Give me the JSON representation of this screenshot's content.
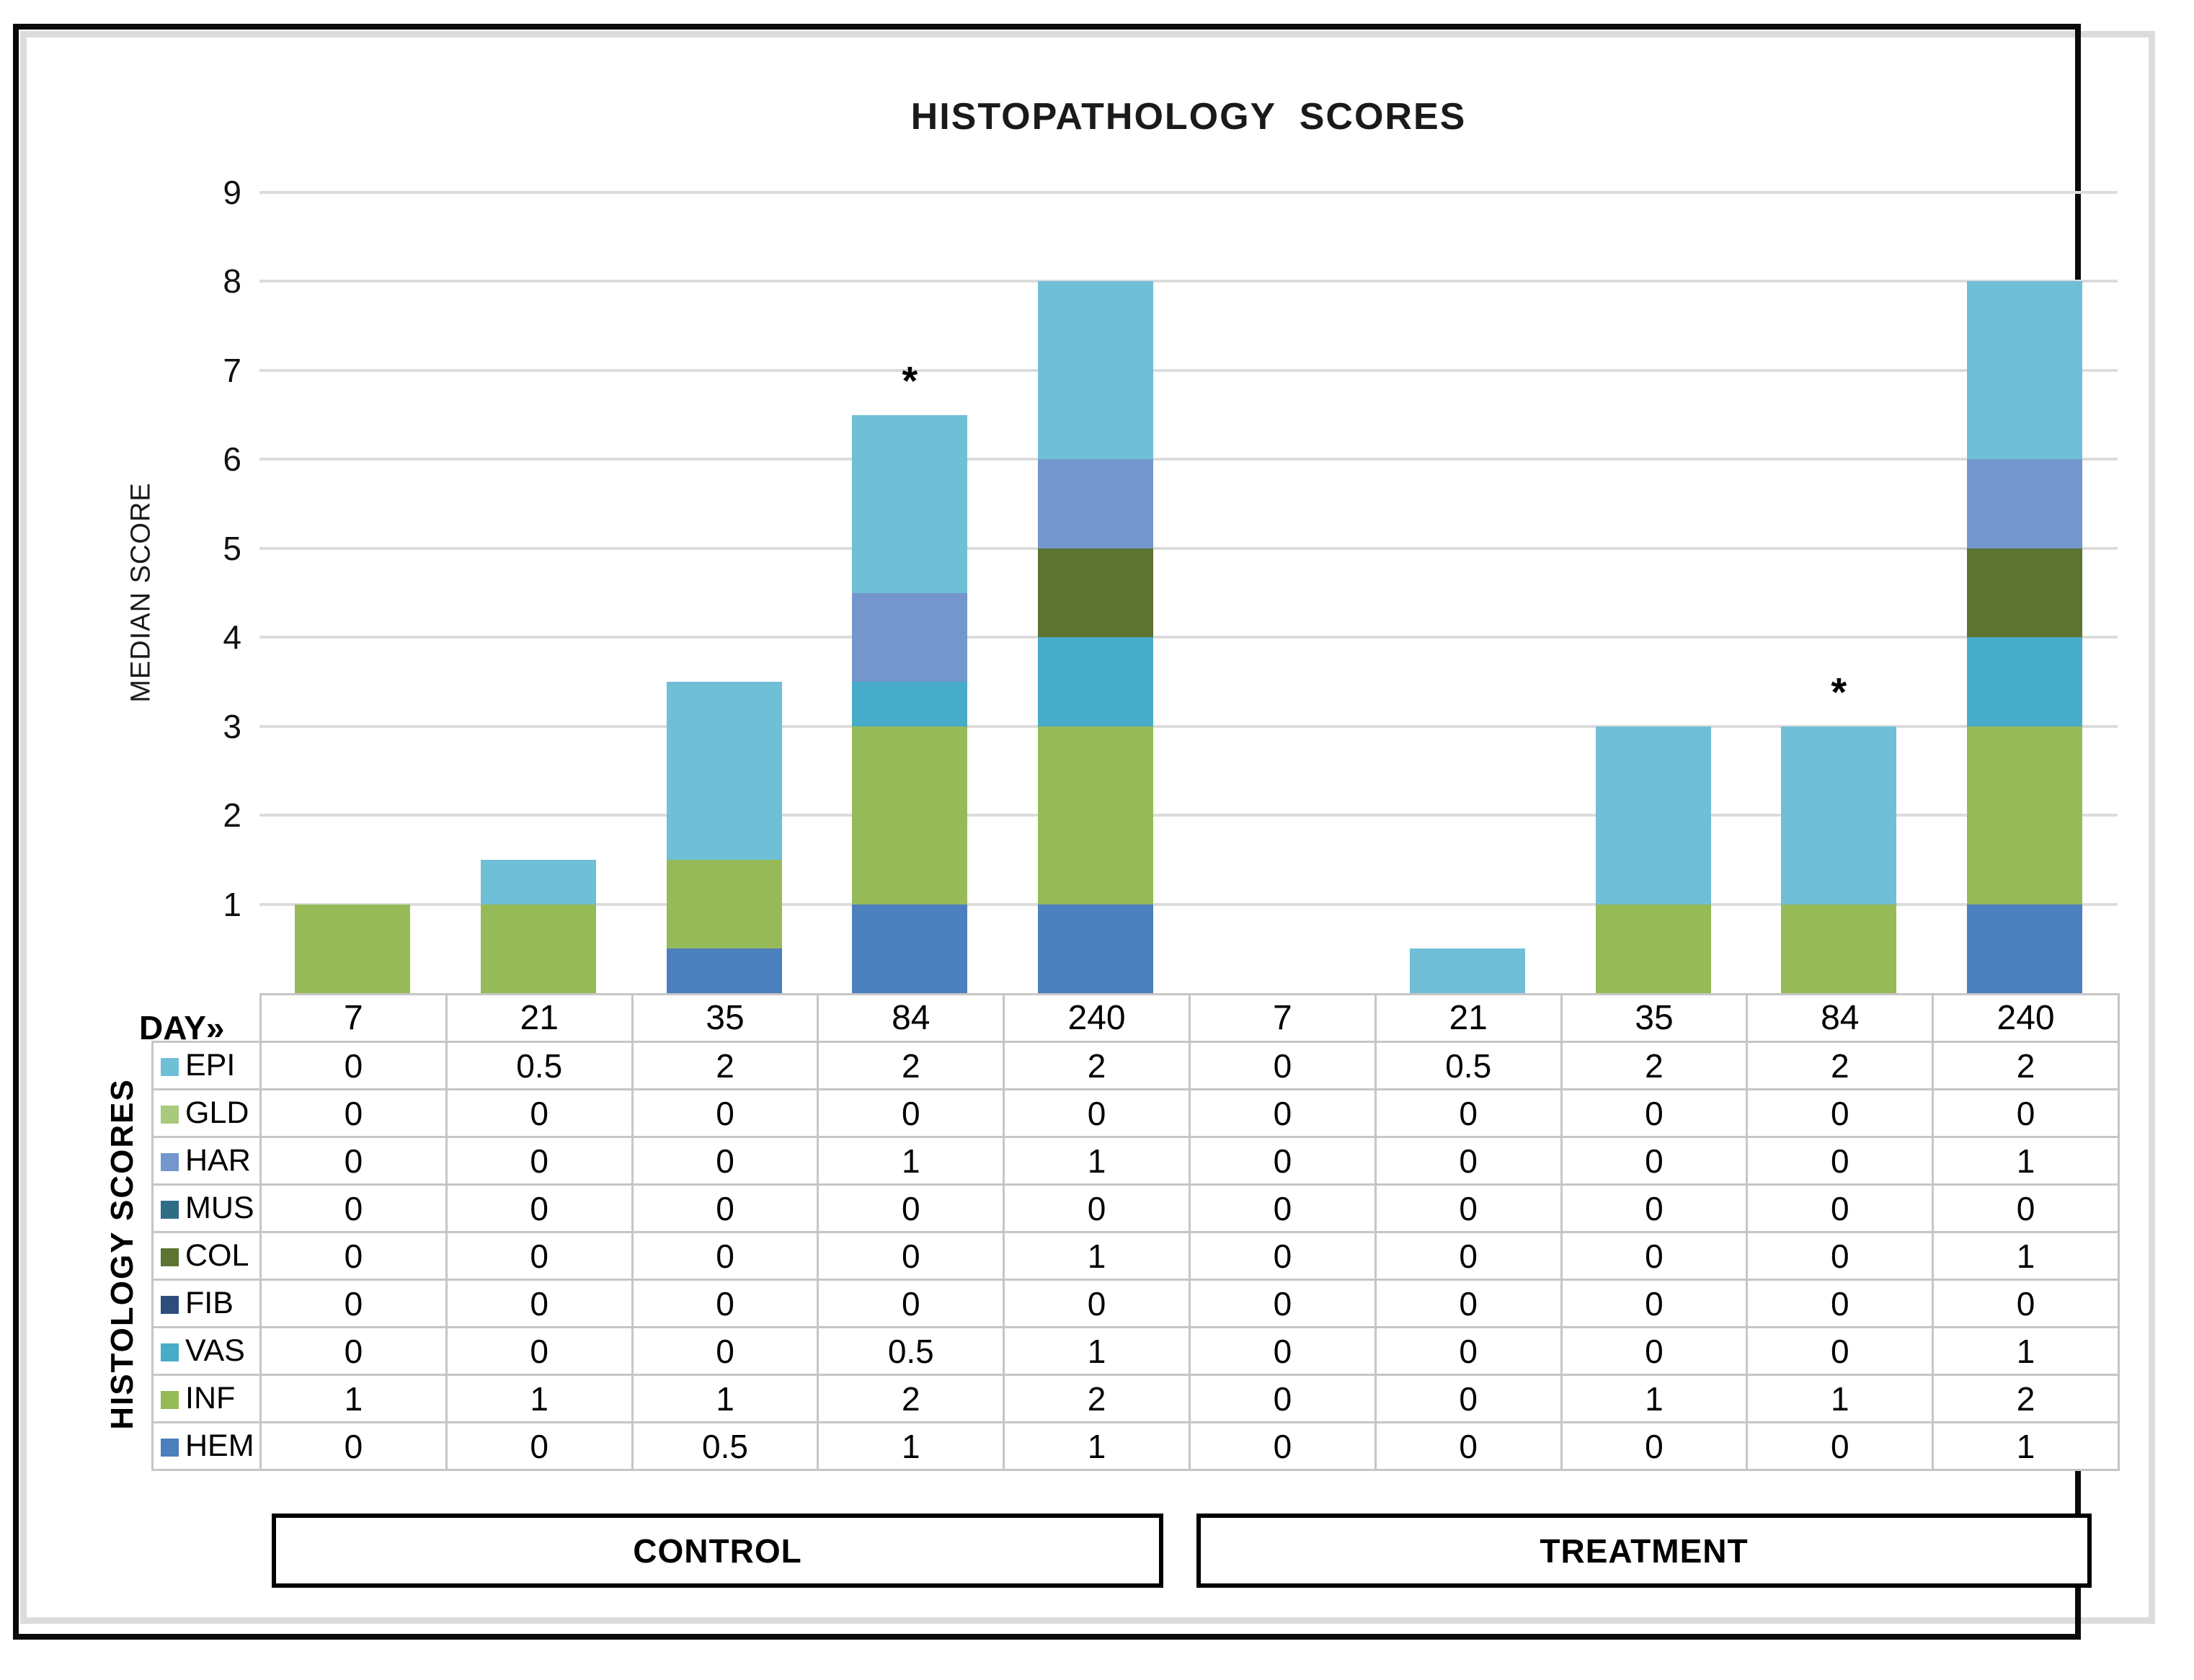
{
  "title": "HISTOPATHOLOGY SCORES",
  "y_axis_label": "MEDIAN SCORE",
  "day_header_label": "DAY»",
  "table_axis_label": "HISTOLOGY SCORES",
  "chart_data": {
    "type": "bar",
    "stacked": true,
    "title": "HISTOPATHOLOGY SCORES",
    "ylabel": "MEDIAN SCORE",
    "ylim": [
      0,
      9
    ],
    "y_ticks": [
      1,
      2,
      3,
      4,
      5,
      6,
      7,
      8,
      9
    ],
    "grid": true,
    "legend_position": "left-table",
    "categories": [
      "7",
      "21",
      "35",
      "84",
      "240",
      "7",
      "21",
      "35",
      "84",
      "240"
    ],
    "group_spans": [
      {
        "label": "CONTROL",
        "start_col": 0,
        "end_col": 4
      },
      {
        "label": "TREATMENT",
        "start_col": 5,
        "end_col": 9
      }
    ],
    "series": [
      {
        "name": "EPI",
        "color": "#6FBFD6",
        "values": [
          0,
          0.5,
          2,
          2,
          2,
          0,
          0.5,
          2,
          2,
          2
        ]
      },
      {
        "name": "GLD",
        "color": "#A9C97E",
        "values": [
          0,
          0,
          0,
          0,
          0,
          0,
          0,
          0,
          0,
          0
        ]
      },
      {
        "name": "HAR",
        "color": "#7397CC",
        "values": [
          0,
          0,
          0,
          1,
          1,
          0,
          0,
          0,
          0,
          1
        ]
      },
      {
        "name": "MUS",
        "color": "#2F6C86",
        "values": [
          0,
          0,
          0,
          0,
          0,
          0,
          0,
          0,
          0,
          0
        ]
      },
      {
        "name": "COL",
        "color": "#5C7331",
        "values": [
          0,
          0,
          0,
          0,
          1,
          0,
          0,
          0,
          0,
          1
        ]
      },
      {
        "name": "FIB",
        "color": "#2E4D7B",
        "values": [
          0,
          0,
          0,
          0,
          0,
          0,
          0,
          0,
          0,
          0
        ]
      },
      {
        "name": "VAS",
        "color": "#47ACC8",
        "values": [
          0,
          0,
          0,
          0.5,
          1,
          0,
          0,
          0,
          0,
          1
        ]
      },
      {
        "name": "INF",
        "color": "#97BA59",
        "values": [
          1,
          1,
          1,
          2,
          2,
          0,
          0,
          1,
          1,
          2
        ]
      },
      {
        "name": "HEM",
        "color": "#4C7FBE",
        "values": [
          0,
          0,
          0.5,
          1,
          1,
          0,
          0,
          0,
          0,
          1
        ]
      }
    ],
    "stack_order_bottom_to_top": [
      "HEM",
      "INF",
      "VAS",
      "FIB",
      "COL",
      "MUS",
      "HAR",
      "GLD",
      "EPI"
    ],
    "annotations": [
      {
        "text": "*",
        "category_index": 3
      },
      {
        "text": "*",
        "category_index": 8
      }
    ]
  }
}
